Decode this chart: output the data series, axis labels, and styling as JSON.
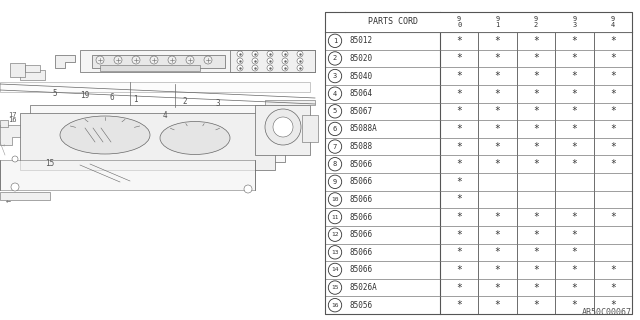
{
  "part_numbers": [
    "85012",
    "85020",
    "85040",
    "85064",
    "85067",
    "85088A",
    "85088",
    "85066",
    "85066",
    "85066",
    "85066",
    "85066",
    "85066",
    "85066",
    "85026A",
    "85056"
  ],
  "item_numbers": [
    1,
    2,
    3,
    4,
    5,
    6,
    7,
    8,
    9,
    10,
    11,
    12,
    13,
    14,
    15,
    16
  ],
  "col_headers": [
    "9\n0",
    "9\n1",
    "9\n2",
    "9\n3",
    "9\n4"
  ],
  "asterisks": [
    [
      true,
      true,
      true,
      true,
      true
    ],
    [
      true,
      true,
      true,
      true,
      true
    ],
    [
      true,
      true,
      true,
      true,
      true
    ],
    [
      true,
      true,
      true,
      true,
      true
    ],
    [
      true,
      true,
      true,
      true,
      true
    ],
    [
      true,
      true,
      true,
      true,
      true
    ],
    [
      true,
      true,
      true,
      true,
      true
    ],
    [
      true,
      true,
      true,
      true,
      true
    ],
    [
      true,
      false,
      false,
      false,
      false
    ],
    [
      true,
      false,
      false,
      false,
      false
    ],
    [
      true,
      true,
      true,
      true,
      true
    ],
    [
      true,
      true,
      true,
      true,
      false
    ],
    [
      true,
      true,
      true,
      true,
      false
    ],
    [
      true,
      true,
      true,
      true,
      true
    ],
    [
      true,
      true,
      true,
      true,
      true
    ],
    [
      true,
      true,
      true,
      true,
      true
    ]
  ],
  "watermark": "AB50C00067",
  "bg_color": "#ffffff",
  "lc": "#666666",
  "tc": "#333333"
}
